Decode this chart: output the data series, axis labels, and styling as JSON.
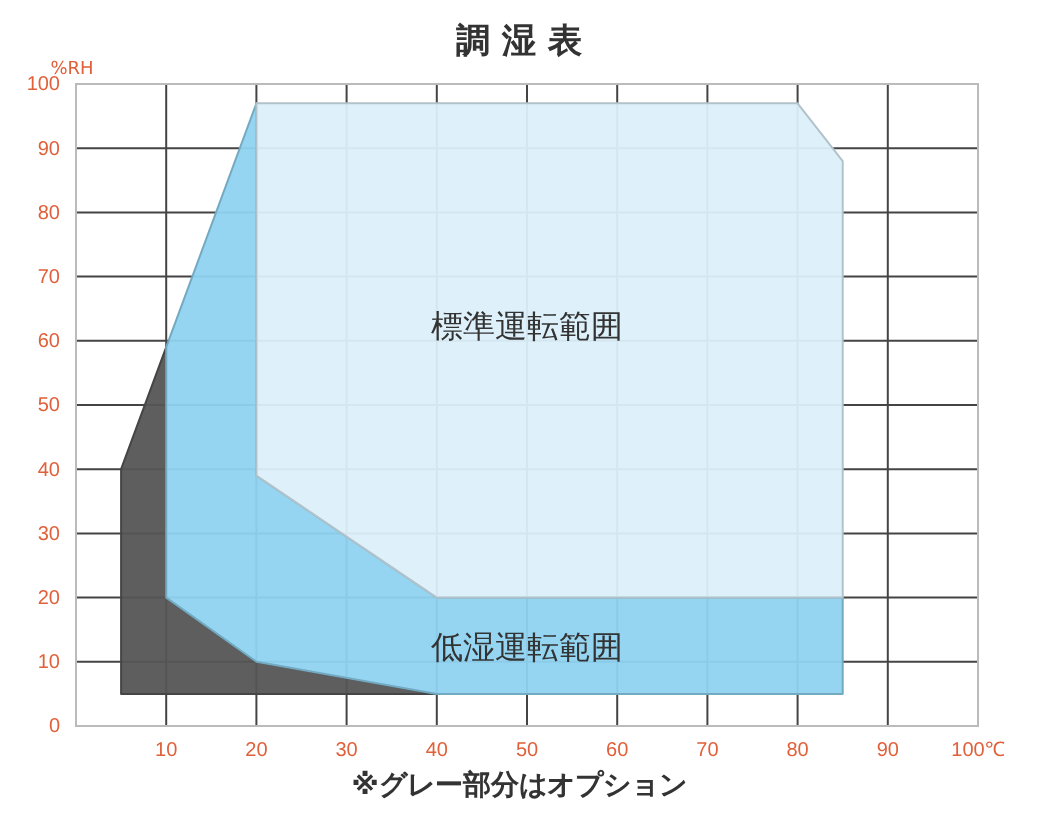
{
  "chart_data": {
    "type": "area",
    "title": "調 湿 表",
    "ylabel": "%RH",
    "xlim": [
      0,
      100
    ],
    "ylim": [
      0,
      100
    ],
    "xticks": [
      10,
      20,
      30,
      40,
      50,
      60,
      70,
      80,
      90,
      {
        "value": 100,
        "label": "100℃"
      }
    ],
    "yticks": [
      0,
      10,
      20,
      30,
      40,
      50,
      60,
      70,
      80,
      90,
      100
    ],
    "grid": true,
    "series": [
      {
        "color": "#555555",
        "x": [
          5,
          10,
          10,
          20,
          40,
          5
        ],
        "values": [
          40,
          59,
          20,
          10,
          5,
          5
        ]
      },
      {
        "color": "#8fd3f0",
        "x": [
          10,
          20,
          20,
          40,
          85,
          85,
          40,
          20,
          10
        ],
        "values": [
          59,
          97,
          39,
          20,
          20,
          5,
          5,
          10,
          20
        ]
      },
      {
        "color": "#dcf0fa",
        "x": [
          20,
          80,
          85,
          85,
          40,
          20
        ],
        "values": [
          97,
          97,
          88,
          20,
          20,
          39
        ]
      }
    ],
    "annotations": [
      "標準運転範囲",
      "低湿運転範囲",
      "※グレー部分はオプション"
    ]
  }
}
